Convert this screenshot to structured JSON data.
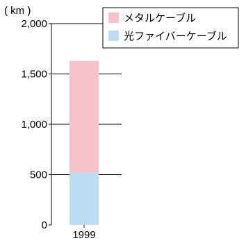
{
  "chart_data": {
    "type": "bar",
    "stacked": true,
    "categories": [
      "1999"
    ],
    "series": [
      {
        "name": "光ファイバーケーブル",
        "values": [
          520
        ],
        "color": "#bcdcf2"
      },
      {
        "name": "メタルケーブル",
        "values": [
          1110
        ],
        "color": "#f7c3cb"
      }
    ],
    "title": "",
    "xlabel": "",
    "ylabel": "( km )",
    "ylim": [
      0,
      2000
    ],
    "yticks": [
      0,
      500,
      1000,
      1500,
      2000
    ],
    "ytick_labels": [
      "0",
      "500",
      "1,000",
      "1,500",
      "2,000"
    ],
    "grid": true,
    "legend_position": "top-right",
    "legend_order": [
      "メタルケーブル",
      "光ファイバーケーブル"
    ]
  }
}
